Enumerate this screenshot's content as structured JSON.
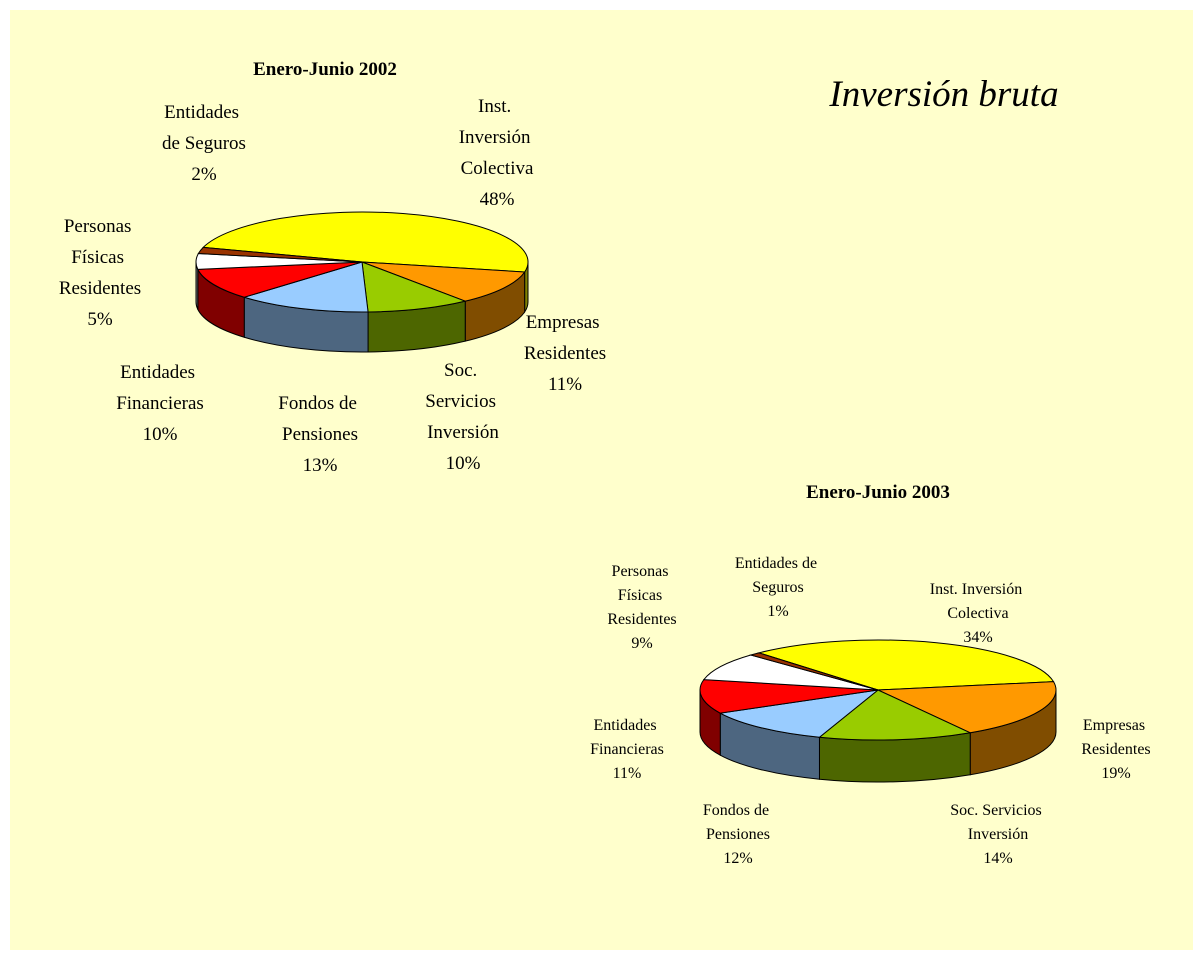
{
  "title": "Inversión bruta",
  "chart_data": [
    {
      "type": "pie3d",
      "title": "Enero-Junio 2002",
      "categories": [
        "Inst. Inversión Colectiva",
        "Empresas Residentes",
        "Soc. Servicios Inversión",
        "Fondos de Pensiones",
        "Entidades Financieras",
        "Personas Físicas Residentes",
        "Entidades de Seguros"
      ],
      "values": [
        48,
        11,
        10,
        13,
        10,
        5,
        2
      ],
      "value_labels": [
        "48%",
        "11%",
        "10%",
        "13%",
        "10%",
        "5%",
        "2%"
      ],
      "colors": [
        "#ffff00",
        "#ff9900",
        "#99cc00",
        "#99ccff",
        "#ff0000",
        "#ffffff",
        "#993300"
      ]
    },
    {
      "type": "pie3d",
      "title": "Enero-Junio 2003",
      "categories": [
        "Inst. Inversión Colectiva",
        "Empresas Residentes",
        "Soc. Servicios Inversión",
        "Fondos de Pensiones",
        "Entidades Financieras",
        "Personas Físicas Residentes",
        "Entidades de Seguros"
      ],
      "values": [
        34,
        19,
        14,
        12,
        11,
        9,
        1
      ],
      "value_labels": [
        "34%",
        "19%",
        "14%",
        "12%",
        "11%",
        "9%",
        "1%"
      ],
      "colors": [
        "#ffff00",
        "#ff9900",
        "#99cc00",
        "#99ccff",
        "#ff0000",
        "#ffffff",
        "#993300"
      ]
    }
  ]
}
